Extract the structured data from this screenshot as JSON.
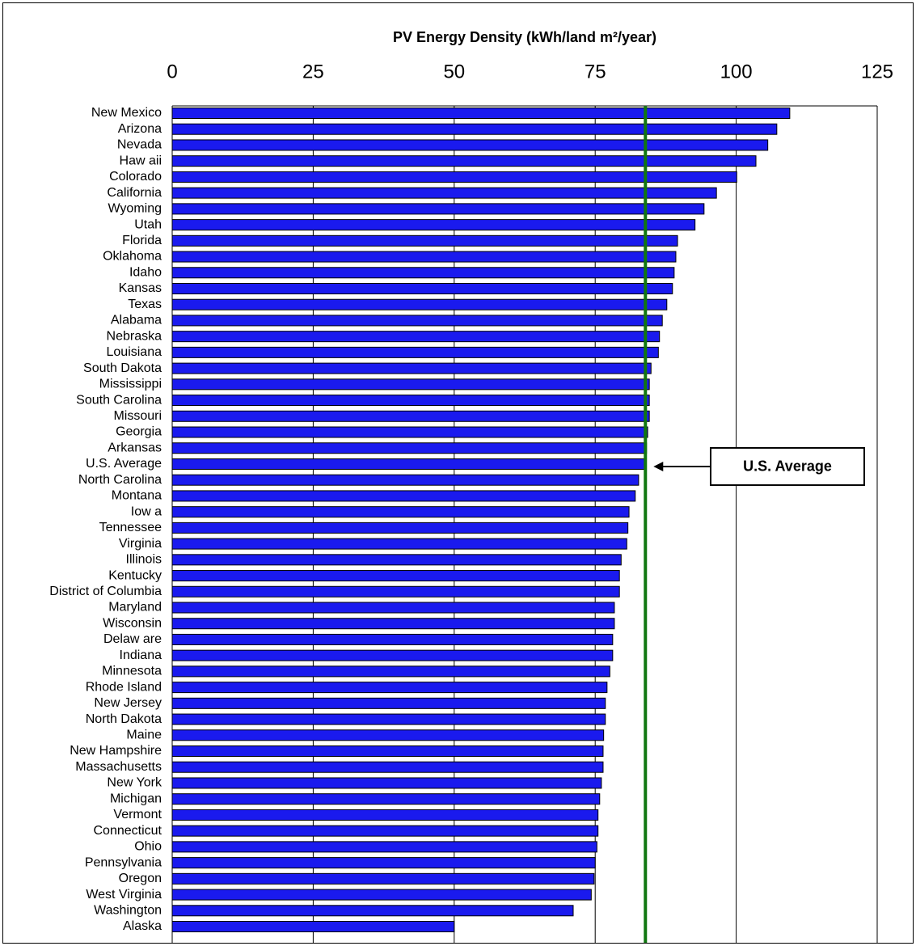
{
  "chart_data": {
    "type": "bar",
    "orientation": "horizontal",
    "title": "PV Energy Density (kWh/land m²/year)",
    "categories": [
      "New Mexico",
      "Arizona",
      "Nevada",
      "Haw aii",
      "Colorado",
      "California",
      "Wyoming",
      "Utah",
      "Florida",
      "Oklahoma",
      "Idaho",
      "Kansas",
      "Texas",
      "Alabama",
      "Nebraska",
      "Louisiana",
      "South Dakota",
      "Mississippi",
      "South Carolina",
      "Missouri",
      "Georgia",
      "Arkansas",
      "U.S. Average",
      "North Carolina",
      "Montana",
      "Iow a",
      "Tennessee",
      "Virginia",
      "Illinois",
      "Kentucky",
      "District of Columbia",
      "Maryland",
      "Wisconsin",
      "Delaw are",
      "Indiana",
      "Minnesota",
      "Rhode Island",
      "New Jersey",
      "North Dakota",
      "Maine",
      "New Hampshire",
      "Massachusetts",
      "New York",
      "Michigan",
      "Vermont",
      "Connecticut",
      "Ohio",
      "Pennsylvania",
      "Oregon",
      "West Virginia",
      "Washington",
      "Alaska"
    ],
    "values": [
      109.5,
      107.2,
      105.6,
      103.5,
      100.1,
      96.5,
      94.3,
      92.7,
      89.6,
      89.3,
      89.0,
      88.7,
      87.7,
      86.9,
      86.4,
      86.2,
      84.9,
      84.6,
      84.6,
      84.6,
      84.3,
      84.1,
      83.9,
      82.7,
      82.1,
      81.0,
      80.8,
      80.6,
      79.6,
      79.3,
      79.3,
      78.4,
      78.4,
      78.1,
      78.1,
      77.6,
      77.1,
      76.8,
      76.8,
      76.5,
      76.4,
      76.4,
      76.1,
      75.8,
      75.5,
      75.5,
      75.3,
      75.0,
      74.8,
      74.3,
      71.1,
      50.0
    ],
    "color": "#1a1aee",
    "average_line_color": "#117711",
    "annotation": "U.S. Average",
    "xlim": [
      0,
      125
    ],
    "xticks": [
      0,
      25,
      50,
      75,
      100,
      125
    ],
    "grid": true
  }
}
